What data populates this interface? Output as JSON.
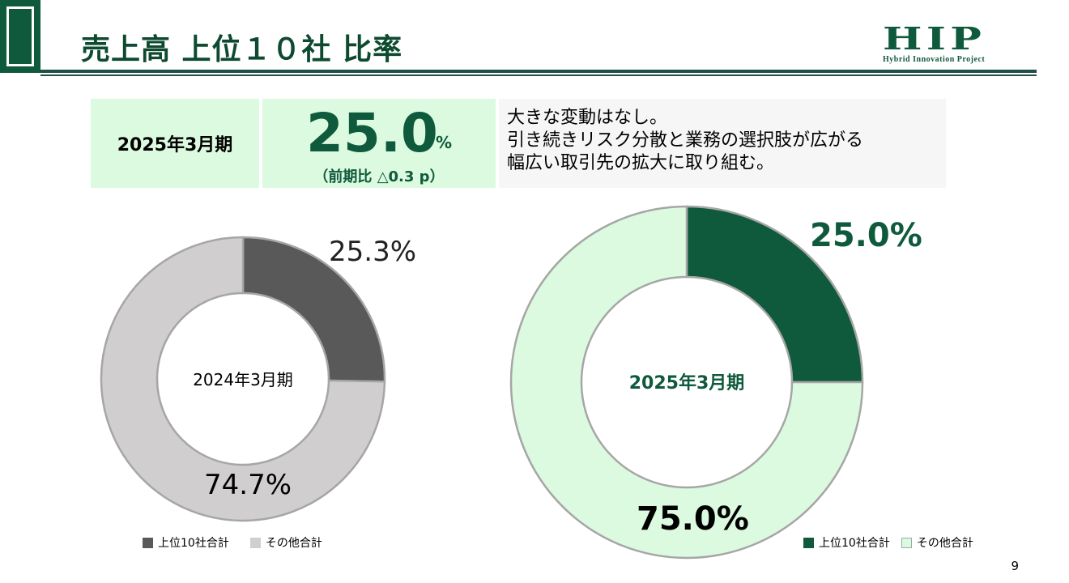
{
  "header": {
    "title": "売上高 上位１０社 比率",
    "logo_text": "HIP",
    "logo_subtext": "Hybrid Innovation Project"
  },
  "summary": {
    "period": "2025年3月期",
    "value": "25.0",
    "unit": "%",
    "change": "（前期比 △0.3 p）",
    "comment_lines": [
      "大きな変動はなし。",
      "引き続きリスク分散と業務の選択肢が広がる",
      "幅広い取引先の拡大に取り組む。"
    ]
  },
  "colors": {
    "brand_green": "#0f5a3c",
    "light_green": "#dcfadf",
    "dark_gray": "#595959",
    "light_gray": "#d0cece"
  },
  "chart_data": [
    {
      "type": "pie",
      "center_label": "2024年3月期",
      "labels": [
        "上位10社合計",
        "その他合計"
      ],
      "values": [
        25.3,
        74.7
      ],
      "value_labels": [
        "25.3%",
        "74.7%"
      ],
      "colors": [
        "#595959",
        "#d0cece"
      ],
      "legend": "bottom"
    },
    {
      "type": "pie",
      "center_label": "2025年3月期",
      "labels": [
        "上位10社合計",
        "その他合計"
      ],
      "values": [
        25.0,
        75.0
      ],
      "value_labels": [
        "25.0%",
        "75.0%"
      ],
      "colors": [
        "#0f5a3c",
        "#dcfadf"
      ],
      "legend": "bottom"
    }
  ],
  "page_number": "9"
}
